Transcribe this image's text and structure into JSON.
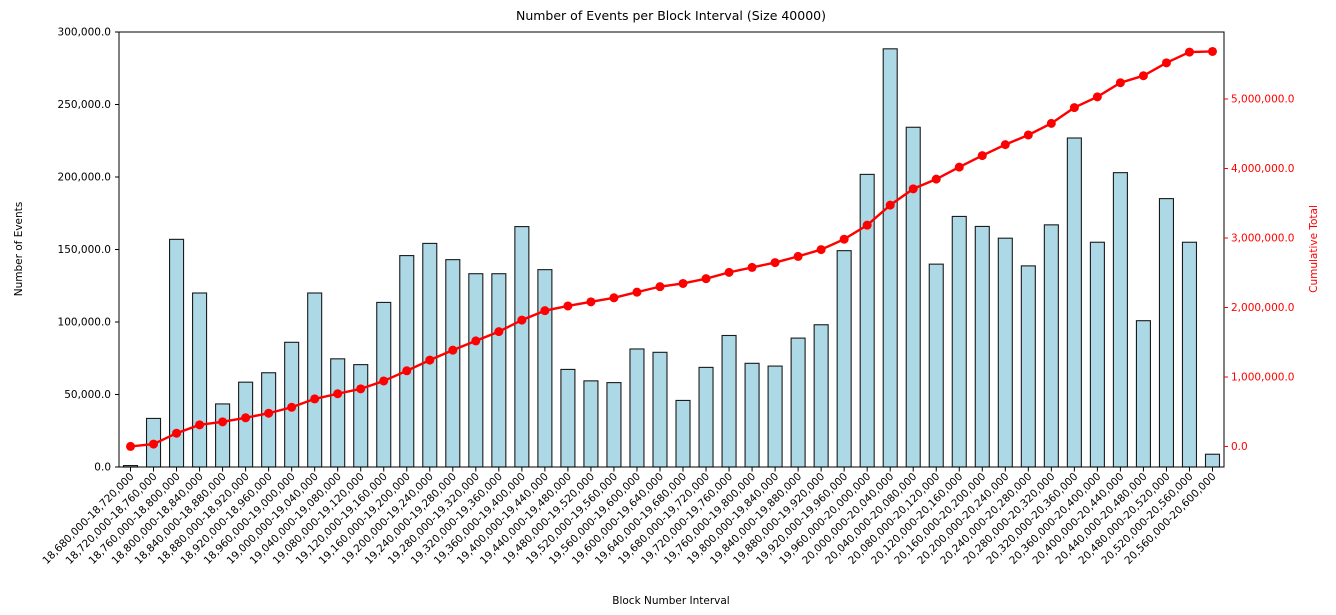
{
  "chart_data": {
    "type": "bar",
    "title": "Number of Events per Block Interval (Size 40000)",
    "xlabel": "Block Number Interval",
    "ylabel_left": "Number of Events",
    "ylabel_right": "Cumulative Total",
    "grid": false,
    "legend": "none",
    "categories": [
      "18,680,000-18,720,000",
      "18,720,000-18,760,000",
      "18,760,000-18,800,000",
      "18,800,000-18,840,000",
      "18,840,000-18,880,000",
      "18,880,000-18,920,000",
      "18,920,000-18,960,000",
      "18,960,000-19,000,000",
      "19,000,000-19,040,000",
      "19,040,000-19,080,000",
      "19,080,000-19,120,000",
      "19,120,000-19,160,000",
      "19,160,000-19,200,000",
      "19,200,000-19,240,000",
      "19,240,000-19,280,000",
      "19,280,000-19,320,000",
      "19,320,000-19,360,000",
      "19,360,000-19,400,000",
      "19,400,000-19,440,000",
      "19,440,000-19,480,000",
      "19,480,000-19,520,000",
      "19,520,000-19,560,000",
      "19,560,000-19,600,000",
      "19,600,000-19,640,000",
      "19,640,000-19,680,000",
      "19,680,000-19,720,000",
      "19,720,000-19,760,000",
      "19,760,000-19,800,000",
      "19,800,000-19,840,000",
      "19,840,000-19,880,000",
      "19,880,000-19,920,000",
      "19,920,000-19,960,000",
      "19,960,000-20,000,000",
      "20,000,000-20,040,000",
      "20,040,000-20,080,000",
      "20,080,000-20,120,000",
      "20,120,000-20,160,000",
      "20,160,000-20,200,000",
      "20,200,000-20,240,000",
      "20,240,000-20,280,000",
      "20,280,000-20,320,000",
      "20,320,000-20,360,000",
      "20,360,000-20,400,000",
      "20,400,000-20,440,000",
      "20,440,000-20,480,000",
      "20,480,000-20,520,000",
      "20,520,000-20,560,000",
      "20,560,000-20,600,000"
    ],
    "series": [
      {
        "name": "Number of Events",
        "type": "bar",
        "axis": "left",
        "color": "#ADD8E6",
        "edge_color": "#1a1a1a",
        "values": [
          1000,
          33500,
          157000,
          120000,
          43500,
          58500,
          65000,
          86000,
          120000,
          74600,
          70600,
          113500,
          145800,
          154200,
          143000,
          133300,
          133300,
          165800,
          136100,
          67300,
          59400,
          58200,
          81400,
          79100,
          45900,
          68700,
          90700,
          71500,
          69600,
          88900,
          98100,
          149200,
          201800,
          288400,
          234300,
          139900,
          172800,
          165900,
          157800,
          138700,
          167000,
          226900,
          155000,
          203000,
          100900,
          185100,
          155000,
          8800
        ]
      },
      {
        "name": "Cumulative Total",
        "type": "line",
        "axis": "right",
        "color": "#ff0000",
        "values": [
          1000,
          34500,
          191500,
          311500,
          355000,
          413500,
          478500,
          564500,
          684500,
          759100,
          829700,
          943200,
          1089000,
          1243200,
          1386200,
          1519500,
          1652800,
          1818600,
          1954700,
          2022000,
          2081400,
          2139600,
          2221000,
          2300100,
          2346000,
          2414700,
          2505400,
          2576900,
          2646500,
          2735400,
          2833500,
          2982700,
          3184500,
          3472900,
          3707200,
          3847100,
          4019900,
          4185800,
          4343600,
          4482300,
          4649300,
          4876200,
          5031200,
          5234200,
          5335100,
          5520200,
          5675200,
          5684000
        ]
      }
    ],
    "left_axis": {
      "ticks": [
        0,
        50000,
        100000,
        150000,
        200000,
        250000,
        300000
      ],
      "tick_labels": [
        "0.0",
        "50,000.0",
        "100,000.0",
        "150,000.0",
        "200,000.0",
        "250,000.0",
        "300,000.0"
      ],
      "color": "#000000",
      "range": [
        0,
        300000
      ]
    },
    "right_axis": {
      "ticks": [
        0,
        1000000,
        2000000,
        3000000,
        4000000,
        5000000
      ],
      "tick_labels": [
        "0.0",
        "1,000,000.0",
        "2,000,000.0",
        "3,000,000.0",
        "4,000,000.0",
        "5,000,000.0"
      ],
      "color": "#ff0000"
    }
  },
  "colors": {
    "background": "#ffffff",
    "bar_fill": "#ADD8E6",
    "bar_edge": "#1a1a1a",
    "cumulative_line": "#ff0000",
    "text": "#000000"
  }
}
